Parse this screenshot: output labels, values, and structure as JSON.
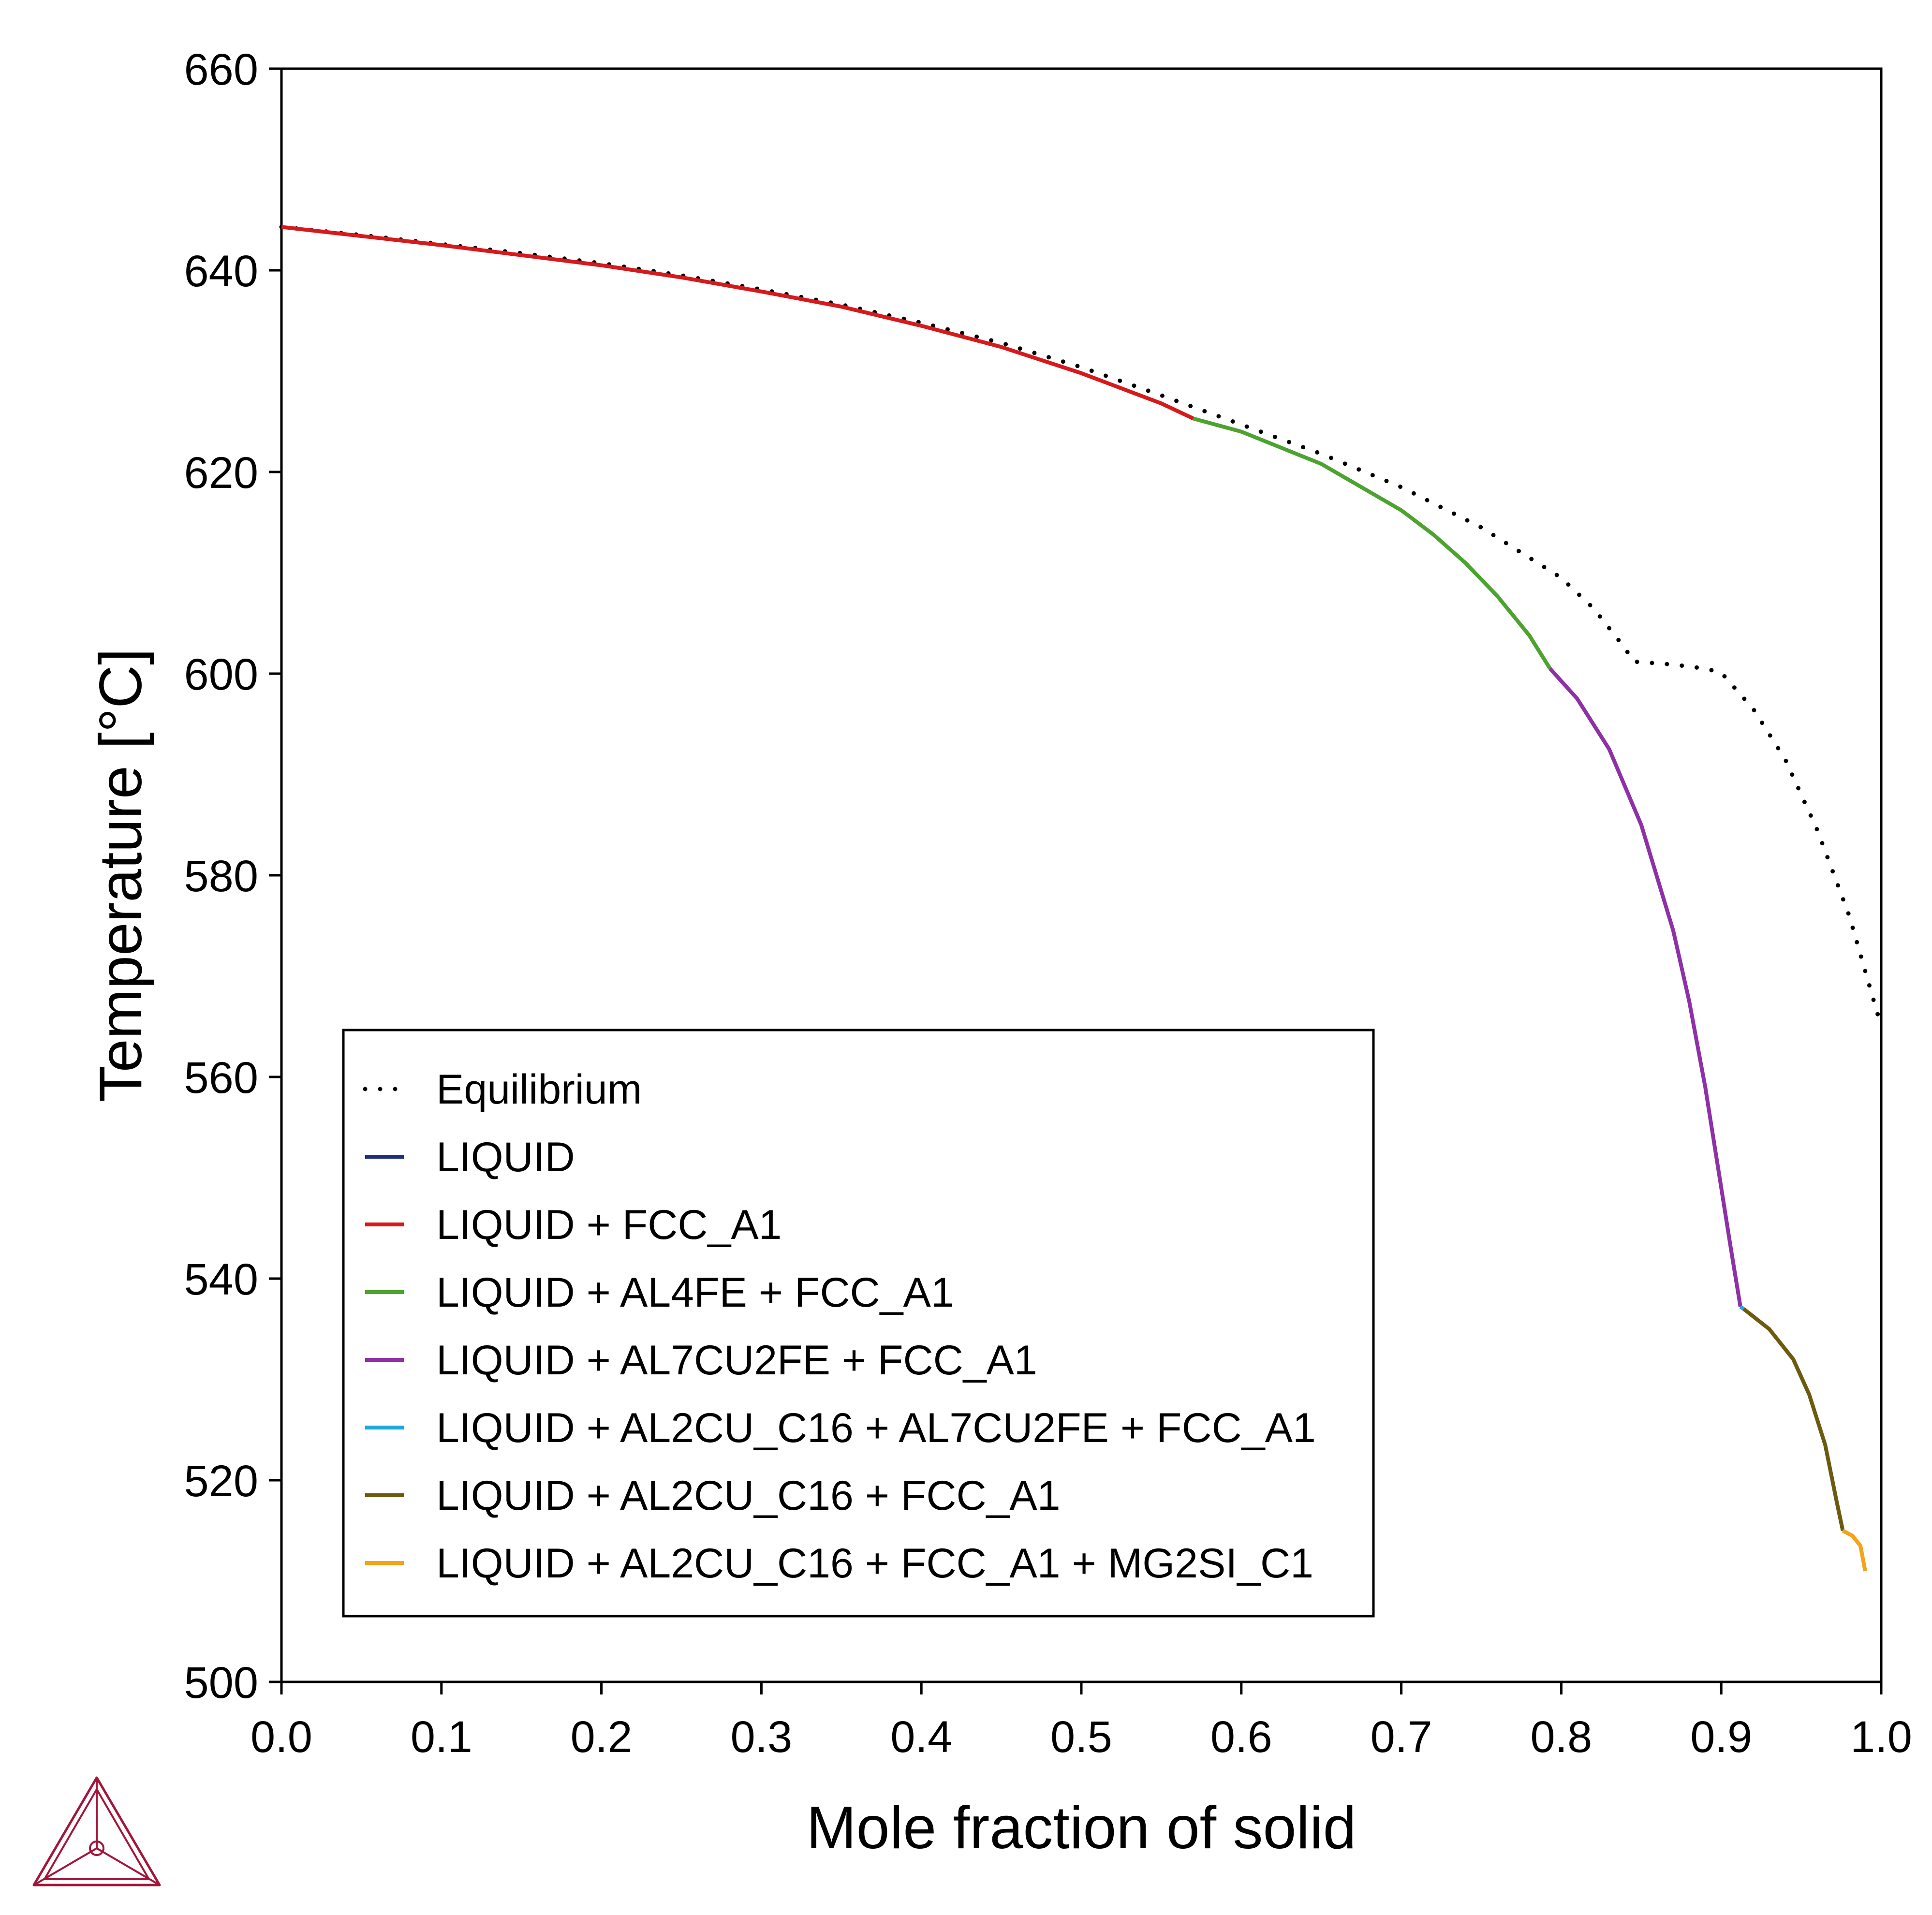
{
  "chart_data": {
    "type": "line",
    "title": "",
    "xlabel": "Mole fraction of solid",
    "ylabel": "Temperature [°C]",
    "xlim": [
      0.0,
      1.0
    ],
    "ylim": [
      500,
      660
    ],
    "xticks": [
      "0.0",
      "0.1",
      "0.2",
      "0.3",
      "0.4",
      "0.5",
      "0.6",
      "0.7",
      "0.8",
      "0.9",
      "1.0"
    ],
    "yticks": [
      "500",
      "520",
      "540",
      "560",
      "580",
      "600",
      "620",
      "640",
      "660"
    ],
    "grid": false,
    "legend_position": "lower-left",
    "series": [
      {
        "name": "Equilibrium",
        "style": "dotted",
        "color": "#000000",
        "points": [
          [
            0.0,
            644.3
          ],
          [
            0.05,
            643.5
          ],
          [
            0.1,
            642.6
          ],
          [
            0.15,
            641.7
          ],
          [
            0.2,
            640.7
          ],
          [
            0.25,
            639.5
          ],
          [
            0.3,
            638.1
          ],
          [
            0.35,
            636.6
          ],
          [
            0.4,
            634.8
          ],
          [
            0.45,
            632.8
          ],
          [
            0.5,
            630.4
          ],
          [
            0.55,
            627.6
          ],
          [
            0.6,
            624.7
          ],
          [
            0.65,
            621.8
          ],
          [
            0.7,
            618.5
          ],
          [
            0.75,
            614.5
          ],
          [
            0.8,
            609.5
          ],
          [
            0.82,
            606.5
          ],
          [
            0.84,
            602.5
          ],
          [
            0.845,
            601.2
          ],
          [
            0.87,
            600.9
          ],
          [
            0.89,
            600.5
          ],
          [
            0.9,
            600.1
          ],
          [
            0.92,
            596.5
          ],
          [
            0.94,
            591.5
          ],
          [
            0.96,
            584.5
          ],
          [
            0.98,
            576.0
          ],
          [
            1.0,
            565.0
          ]
        ]
      },
      {
        "name": "LIQUID",
        "style": "solid",
        "color": "#1f2e7a",
        "points": []
      },
      {
        "name": "LIQUID + FCC_A1",
        "style": "solid",
        "color": "#d7191c",
        "points": [
          [
            0.0,
            644.3
          ],
          [
            0.05,
            643.4
          ],
          [
            0.1,
            642.5
          ],
          [
            0.15,
            641.5
          ],
          [
            0.2,
            640.5
          ],
          [
            0.25,
            639.3
          ],
          [
            0.3,
            637.9
          ],
          [
            0.35,
            636.4
          ],
          [
            0.4,
            634.5
          ],
          [
            0.45,
            632.4
          ],
          [
            0.5,
            629.8
          ],
          [
            0.55,
            626.8
          ],
          [
            0.57,
            625.3
          ]
        ]
      },
      {
        "name": "LIQUID + AL4FE + FCC_A1",
        "style": "solid",
        "color": "#4da32f",
        "points": [
          [
            0.57,
            625.3
          ],
          [
            0.6,
            624.0
          ],
          [
            0.65,
            620.8
          ],
          [
            0.7,
            616.2
          ],
          [
            0.72,
            613.8
          ],
          [
            0.74,
            611.0
          ],
          [
            0.76,
            607.7
          ],
          [
            0.78,
            603.8
          ],
          [
            0.793,
            600.5
          ]
        ]
      },
      {
        "name": "LIQUID + AL7CU2FE + FCC_A1",
        "style": "solid",
        "color": "#8e30a8",
        "points": [
          [
            0.793,
            600.5
          ],
          [
            0.81,
            597.5
          ],
          [
            0.83,
            592.5
          ],
          [
            0.85,
            585.0
          ],
          [
            0.87,
            574.5
          ],
          [
            0.88,
            567.5
          ],
          [
            0.89,
            559.0
          ],
          [
            0.9,
            549.0
          ],
          [
            0.906,
            543.0
          ],
          [
            0.912,
            537.2
          ]
        ]
      },
      {
        "name": "LIQUID + AL2CU_C16 + AL7CU2FE + FCC_A1",
        "style": "solid",
        "color": "#1ba7e0",
        "points": [
          [
            0.912,
            537.2
          ],
          [
            0.914,
            537.0
          ]
        ]
      },
      {
        "name": "LIQUID + AL2CU_C16 + FCC_A1",
        "style": "solid",
        "color": "#6b5a10",
        "points": [
          [
            0.914,
            537.0
          ],
          [
            0.93,
            535.0
          ],
          [
            0.945,
            532.0
          ],
          [
            0.955,
            528.5
          ],
          [
            0.965,
            523.5
          ],
          [
            0.972,
            518.0
          ],
          [
            0.976,
            515.0
          ]
        ]
      },
      {
        "name": "LIQUID + AL2CU_C16 + FCC_A1 + MG2SI_C1",
        "style": "solid",
        "color": "#f5a31a",
        "points": [
          [
            0.976,
            515.0
          ],
          [
            0.982,
            514.5
          ],
          [
            0.987,
            513.5
          ],
          [
            0.99,
            511.0
          ]
        ]
      }
    ]
  }
}
